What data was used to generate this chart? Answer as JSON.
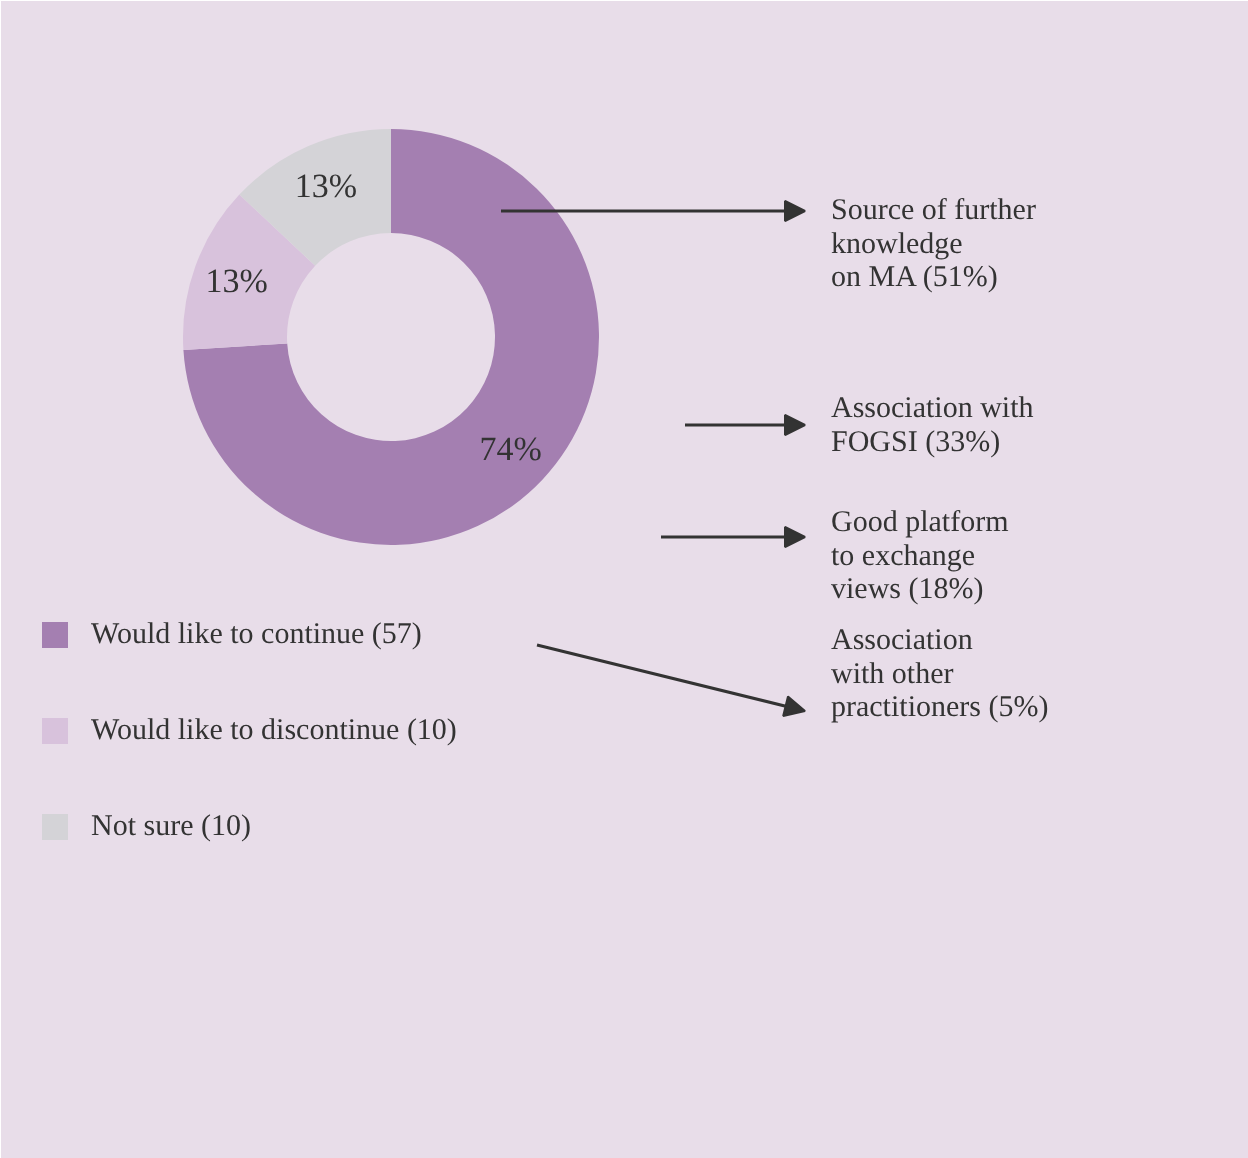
{
  "chart_data": {
    "type": "donut",
    "categories": [
      "Would like to continue (57)",
      "Would like to discontinue (10)",
      "Not sure (10)"
    ],
    "values": [
      74,
      13,
      13
    ],
    "colors": [
      "#a47fb1",
      "#d8c2dc",
      "#d4d3d7"
    ],
    "value_labels": [
      "74%",
      "13%",
      "13%"
    ],
    "legend": "bottom left",
    "annotations": [
      "Source of further\nknowledge\non MA (51%)",
      "Association with\nFOGSI (33%)",
      "Good platform\nto exchange\nviews (18%)",
      "Association\nwith other\npractitioners (5%)"
    ]
  }
}
